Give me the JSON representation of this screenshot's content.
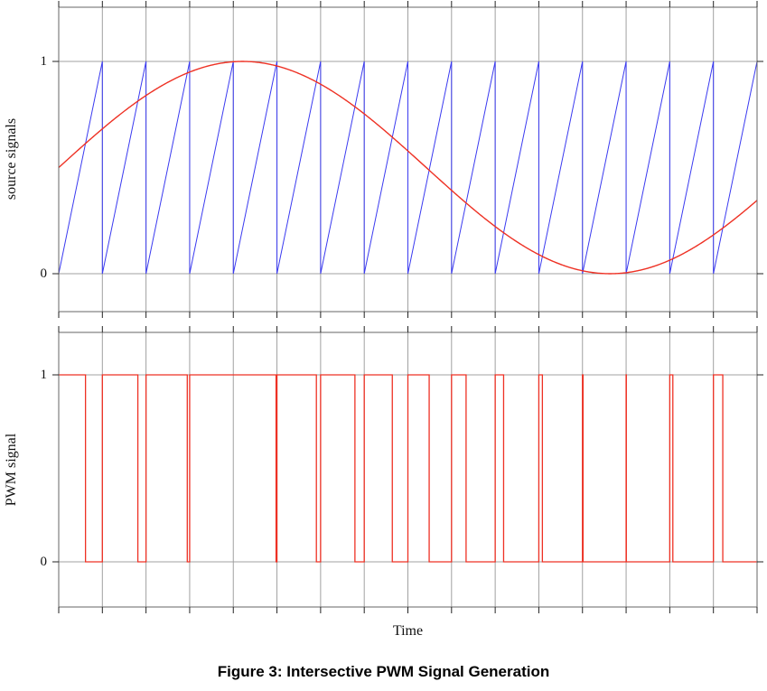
{
  "figure": {
    "xlabel": "Time",
    "caption": "Figure 3: Intersective PWM Signal Generation"
  },
  "colors": {
    "carrier": "#3a3af0",
    "reference": "#ee3124",
    "pwm": "#ee3124",
    "grid": "#a0a0a0",
    "frame": "#666666",
    "tick": "#222222"
  },
  "chart_data": [
    {
      "type": "line",
      "title": "",
      "ylabel": "source signals",
      "xlim": [
        0,
        1
      ],
      "ylim": [
        -0.2,
        1.26
      ],
      "ytick_values": [
        1,
        0
      ],
      "ytick_labels": [
        "1",
        "0"
      ],
      "grid": {
        "vertical_at_carrier_periods": true,
        "horizontal_at": [
          0,
          1
        ]
      },
      "series": [
        {
          "name": "sawtooth carrier",
          "waveform": "sawtooth",
          "periods": 16,
          "min": 0,
          "max": 1,
          "color_key": "carrier"
        },
        {
          "name": "sine reference",
          "waveform": "sine",
          "cycles": 0.95,
          "phase": 0,
          "offset": 0.5,
          "amplitude": 0.5,
          "color_key": "reference"
        }
      ]
    },
    {
      "type": "line",
      "title": "",
      "ylabel": "PWM signal",
      "xlim": [
        0,
        1
      ],
      "ylim": [
        -0.24,
        1.23
      ],
      "ytick_values": [
        1,
        0
      ],
      "ytick_labels": [
        "1",
        "0"
      ],
      "grid": {
        "vertical_at_carrier_periods": true,
        "horizontal_at": [
          0,
          1
        ]
      },
      "series": [
        {
          "name": "PWM output",
          "waveform": "pwm",
          "rule": "high while sine reference >= sawtooth carrier, reset high at each carrier period start",
          "levels": [
            0,
            1
          ],
          "color_key": "pwm"
        }
      ]
    }
  ]
}
